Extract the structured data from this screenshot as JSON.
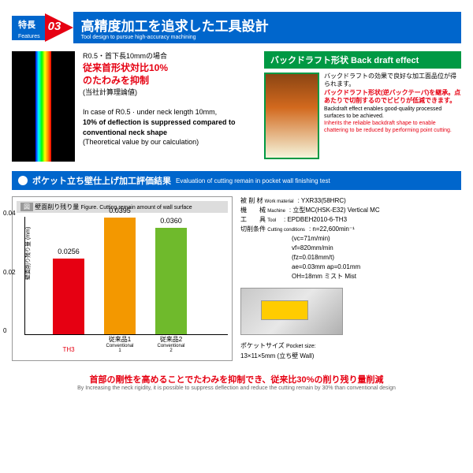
{
  "header": {
    "feat_jp": "特長",
    "feat_en": "Features",
    "num": "03",
    "title_jp": "高精度加工を追求した工具設計",
    "title_en": "Tool design to pursue high-accuracy machining"
  },
  "fem": {
    "case": "R0.5・首下長10mmの場合",
    "red1": "従来首形状対比10%",
    "red2": "のたわみを抑制",
    "note": "(当社計算理論値)",
    "en1": "In case of R0.5 · under neck length 10mm,",
    "en2": "10% of deflection is suppressed compared to conventional neck shape",
    "en3": "(Theoretical value by our calculation)"
  },
  "back": {
    "header": "バックドラフト形状  Back draft effect",
    "jp1": "バックドラフトの効果で良好な加工面品位が得られます。",
    "red": "バックドラフト形状(逆バックテーパ)を継承。点あたりで切削するのでビビりが低減できます。",
    "en1": "Backdraft effect enables good-quality processed surfaces to be achieved.",
    "en2": "Inherits the reliable backdraft shape to enable chattering to be reduced by performing point cutting."
  },
  "section": {
    "jp": "ポケット立ち壁仕上げ加工評価結果",
    "en": "Evaluation of cutting remain in pocket wall finishing test"
  },
  "chart": {
    "title_jp": "壁面削り残り量",
    "title_en": "Figure. Cutting remain amount of wall surface",
    "ylabel": "壁面削り残り量 (mm)",
    "ylabel_en": "Cutting remain amount of wall surface",
    "ylim": [
      0,
      0.04
    ],
    "yticks": [
      "0",
      "0.02",
      "0.04"
    ],
    "bars": [
      {
        "label": "TH3",
        "sub": "",
        "value": 0.0256,
        "valtext": "0.0256",
        "color": "#e60012",
        "label_color": "#e60012"
      },
      {
        "label": "従来品1",
        "sub": "Conventional 1",
        "value": 0.0395,
        "valtext": "0.0395",
        "color": "#f39800",
        "label_color": "#000"
      },
      {
        "label": "従来品2",
        "sub": "Conventional 2",
        "value": 0.036,
        "valtext": "0.0360",
        "color": "#6fba2c",
        "label_color": "#000"
      }
    ]
  },
  "info": {
    "rows": [
      {
        "l": "被 削 材",
        "en": "Work material",
        "v": ": YXR33(58HRC)"
      },
      {
        "l": "機　　械",
        "en": "Machine",
        "v": ": 立型MC(HSK-E32) Vertical MC"
      },
      {
        "l": "工　　具",
        "en": "Tool",
        "v": ": EPDBEH2010-6-TH3"
      },
      {
        "l": "切削条件",
        "en": "Cutting conditions",
        "v": ": n=22,600min⁻¹"
      }
    ],
    "extra": [
      "(vc=71m/min)",
      "vf=820mm/min",
      "(fz=0.018mm/t)",
      "ae=0.03mm  ap=0.01mm",
      "OH=18mm  ミスト Mist"
    ],
    "pocket_jp": "ポケットサイズ",
    "pocket_en": "Pocket size:",
    "pocket_val": "13×11×5mm (立ち壁 Wall)"
  },
  "footer": {
    "jp": "首部の剛性を高めることでたわみを抑制でき、従来比30%の削り残り量削減",
    "en": "By Increasing the neck rigidity, it is possible to suppress deflection and reduce the cutting remain by 30% than conventional design"
  }
}
